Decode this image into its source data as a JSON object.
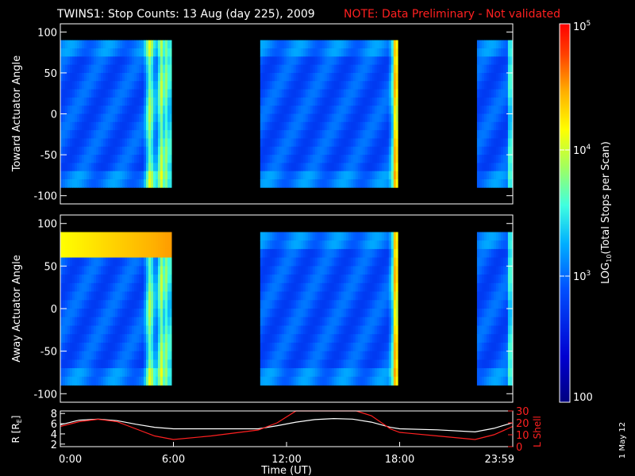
{
  "title": {
    "main": "TWINS1: Stop Counts: 13 Aug (day 225), 2009",
    "note": "NOTE: Data Preliminary - Not validated",
    "note_color": "#ff2020"
  },
  "date_stamp": "1 May 12",
  "chart_data": [
    {
      "type": "heatmap",
      "ylabel": "Toward Actuator Angle",
      "ylim": [
        -110,
        110
      ],
      "yticks": [
        "100",
        "50",
        "0",
        "-50",
        "-100"
      ],
      "xlim_hours": [
        0,
        24
      ],
      "data_windows_hours": [
        [
          0,
          5.9
        ],
        [
          10.6,
          17.9
        ],
        [
          22.1,
          24
        ]
      ],
      "bright_bands_hours": [
        4.7,
        5.3,
        17.7
      ],
      "y_range_deg": [
        -90,
        90
      ]
    },
    {
      "type": "heatmap",
      "ylabel": "Away Actuator Angle",
      "ylim": [
        -110,
        110
      ],
      "yticks": [
        "100",
        "50",
        "0",
        "-50",
        "-100"
      ],
      "xlim_hours": [
        0,
        24
      ],
      "data_windows_hours": [
        [
          0,
          5.9
        ],
        [
          10.6,
          17.9
        ],
        [
          22.1,
          24
        ]
      ],
      "bright_bands_hours": [
        4.7,
        5.3,
        17.7
      ],
      "hot_region": {
        "hours": [
          0,
          5.9
        ],
        "angle_deg": [
          65,
          90
        ]
      },
      "y_range_deg": [
        -90,
        90
      ]
    },
    {
      "type": "line",
      "ylabel_left": "R [R",
      "ylabel_left_sub": "E",
      "ylabel_left_tail": "]",
      "ylabel_right": "L Shell",
      "yticks_left": [
        "8",
        "6",
        "4",
        "2"
      ],
      "yticks_right": [
        "30",
        "20",
        "10",
        "0"
      ],
      "x_ticks": [
        "0:00",
        "6:00",
        "12:00",
        "18:00",
        "23:59"
      ],
      "xlabel": "Time (UT)",
      "series": [
        {
          "color": "#ffffff",
          "points": [
            [
              0,
              5.8
            ],
            [
              1,
              6.7
            ],
            [
              2,
              6.9
            ],
            [
              3,
              6.6
            ],
            [
              4,
              5.9
            ],
            [
              5,
              5.3
            ],
            [
              6,
              5.0
            ],
            [
              8,
              5.0
            ],
            [
              10.5,
              5.0
            ],
            [
              11.5,
              5.6
            ],
            [
              12.5,
              6.3
            ],
            [
              13.5,
              6.8
            ],
            [
              14.5,
              7.0
            ],
            [
              15.5,
              6.9
            ],
            [
              16.5,
              6.3
            ],
            [
              17.5,
              5.3
            ],
            [
              18,
              5.0
            ],
            [
              20,
              4.8
            ],
            [
              22,
              4.4
            ],
            [
              23,
              5.1
            ],
            [
              24,
              6.2
            ]
          ]
        },
        {
          "color": "#ff2020",
          "points": [
            [
              0,
              17
            ],
            [
              1,
              21
            ],
            [
              2,
              23
            ],
            [
              3,
              21
            ],
            [
              4,
              15
            ],
            [
              5,
              9
            ],
            [
              6,
              6
            ],
            [
              8,
              9
            ],
            [
              10.5,
              14
            ],
            [
              11.5,
              20
            ],
            [
              12.5,
              32
            ],
            [
              13,
              32
            ],
            [
              15.7,
              32
            ],
            [
              16.5,
              26
            ],
            [
              17.5,
              15
            ],
            [
              18,
              12
            ],
            [
              20,
              9
            ],
            [
              22,
              6
            ],
            [
              23,
              10
            ],
            [
              24,
              17
            ]
          ]
        }
      ],
      "ylim_left": [
        1.5,
        8.5
      ],
      "ylim_right": [
        0,
        30
      ]
    }
  ],
  "colorbar": {
    "label": "LOG10(Total Stops per Scan)",
    "label_main": "LOG",
    "label_sub": "10",
    "label_tail": "(Total Stops per Scan)",
    "ticks": [
      {
        "base": "10",
        "exp": "5",
        "value": 5
      },
      {
        "base": "10",
        "exp": "4",
        "value": 4
      },
      {
        "base": "10",
        "exp": "3",
        "value": 3
      },
      {
        "base": "100",
        "exp": "",
        "value": 2
      }
    ],
    "range": [
      2,
      5
    ]
  }
}
